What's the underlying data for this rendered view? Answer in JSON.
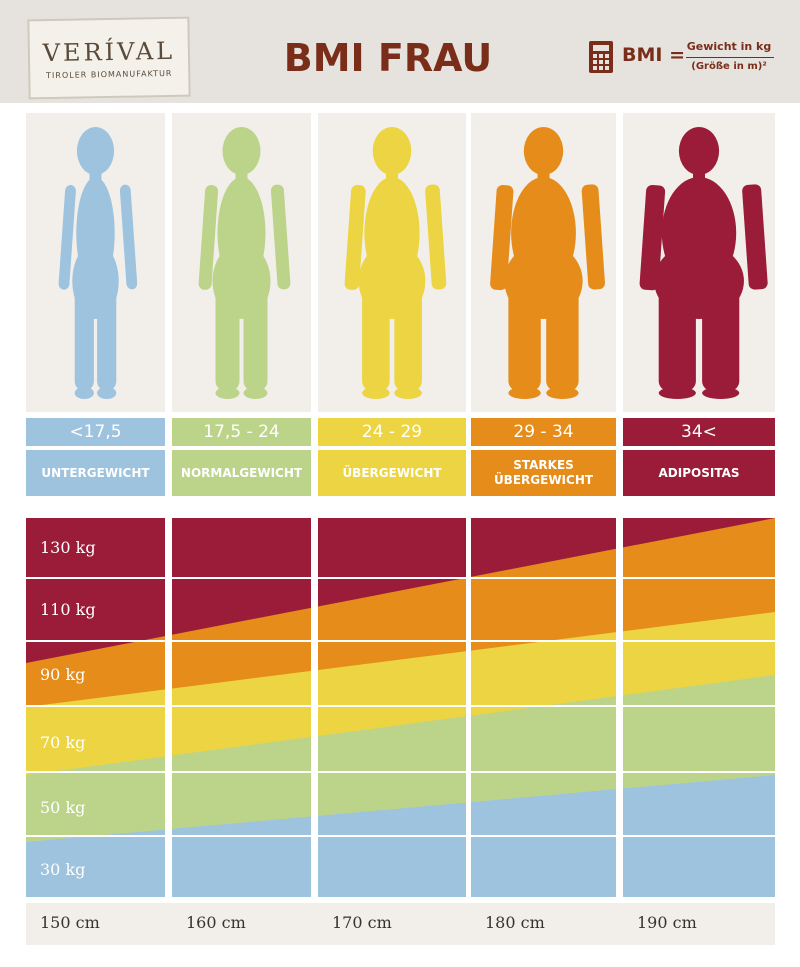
{
  "logo": {
    "name": "VERÍVAL",
    "tagline": "TIROLER BIOMANUFAKTUR"
  },
  "title": "BMI FRAU",
  "formula": {
    "label": "BMI =",
    "numerator": "Gewicht in kg",
    "denominator": "(Größe in m)²"
  },
  "categories": [
    {
      "range": "<17,5",
      "label": "UNTERGEWICHT"
    },
    {
      "range": "17,5 - 24",
      "label": "NORMALGEWICHT"
    },
    {
      "range": "24 - 29",
      "label": "ÜBERGEWICHT"
    },
    {
      "range": "29 - 34",
      "label": "STARKES ÜBERGEWICHT"
    },
    {
      "range": "34<",
      "label": "ADIPOSITAS"
    }
  ],
  "weight_labels": [
    "130 kg",
    "110 kg",
    "90 kg",
    "70 kg",
    "50 kg",
    "30 kg"
  ],
  "height_labels": [
    "150 cm",
    "160 cm",
    "170 cm",
    "180 cm",
    "190 cm"
  ]
}
